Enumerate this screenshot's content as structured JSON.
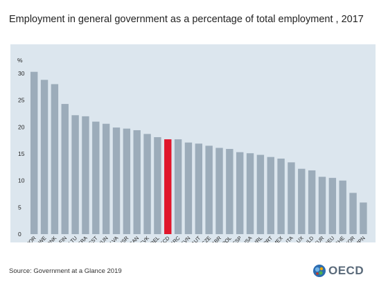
{
  "header": {
    "title": "Employment in general government as a percentage of total employment , 2017"
  },
  "footer": {
    "source": "Source: Government at a Glance 2019",
    "logo_text": "OECD"
  },
  "colors": {
    "bar": "#9cacba",
    "highlight": "#e0162b",
    "panel": "#dce6ee"
  },
  "chart_data": {
    "type": "bar",
    "title": "Employment in general government as a percentage of total employment , 2017",
    "ylabel": "%",
    "xlabel": "",
    "ylim": [
      0,
      30
    ],
    "yticks": [
      0,
      5,
      10,
      15,
      20,
      25,
      30
    ],
    "grid": false,
    "highlight": "OECD",
    "categories": [
      "NOR",
      "SWE",
      "DNK",
      "FIN",
      "LTU",
      "FRA",
      "EST",
      "HUN",
      "LVA",
      "ISR",
      "CAN",
      "SVK",
      "BEL",
      "OECD",
      "GRC",
      "SVN",
      "AUT",
      "CZE",
      "GBR",
      "POL",
      "ESP",
      "USA",
      "IRL",
      "PRT",
      "MEX",
      "ITA",
      "LUX",
      "NLD",
      "TUR",
      "DEU",
      "CHE",
      "KOR",
      "JPN"
    ],
    "values": [
      30.3,
      28.8,
      28.0,
      24.3,
      22.2,
      22.0,
      21.0,
      20.6,
      19.9,
      19.7,
      19.4,
      18.7,
      18.1,
      17.7,
      17.7,
      17.1,
      16.9,
      16.5,
      16.1,
      15.9,
      15.3,
      15.1,
      14.8,
      14.4,
      14.1,
      13.4,
      12.2,
      11.9,
      10.7,
      10.5,
      10.0,
      7.7,
      5.9
    ]
  }
}
